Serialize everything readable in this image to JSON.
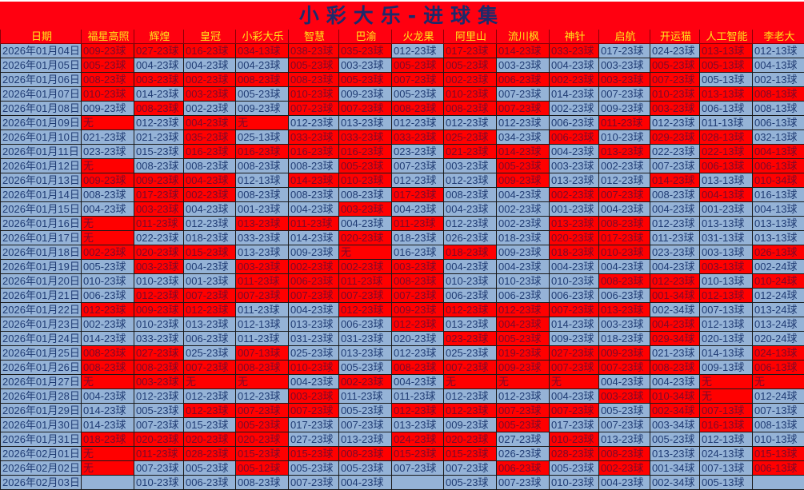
{
  "title": "小彩大乐-进球集",
  "colors": {
    "hit_red": "#ff0000",
    "miss_blue": "#95b3d7",
    "header_bg": "#ff0010",
    "header_text": "#ffe81a",
    "text": "#1f3b73"
  },
  "columns": [
    "日期",
    "福星高照",
    "辉煌",
    "皇冠",
    "小彩大乐",
    "智慧",
    "巴渝",
    "火龙果",
    "阿里山",
    "流川枫",
    "神针",
    "启航",
    "开运猫",
    "人工智能",
    "李老大"
  ],
  "rows": [
    {
      "date": "2026年01月04日",
      "cells": [
        "009-23球",
        "027-23球",
        "016-23球",
        "034-13球",
        "038-23球",
        "035-23球",
        "012-23球",
        "017-23球",
        "014-23球",
        "033-23球",
        "017-23球",
        "024-23球",
        "013-13球",
        "012-13球"
      ],
      "red": [
        1,
        1,
        1,
        1,
        1,
        1,
        0,
        1,
        1,
        1,
        0,
        0,
        1,
        0
      ]
    },
    {
      "date": "2026年01月05日",
      "cells": [
        "005-23球",
        "004-23球",
        "004-23球",
        "004-23球",
        "005-23球",
        "003-23球",
        "005-23球",
        "005-23球",
        "003-23球",
        "004-23球",
        "003-23球",
        "005-23球",
        "005-13球",
        "004-13球"
      ],
      "red": [
        1,
        0,
        0,
        0,
        1,
        0,
        1,
        1,
        0,
        0,
        0,
        1,
        1,
        0
      ]
    },
    {
      "date": "2026年01月06日",
      "cells": [
        "008-23球",
        "003-23球",
        "002-23球",
        "008-23球",
        "008-23球",
        "005-23球",
        "007-23球",
        "002-23球",
        "006-23球",
        "002-23球",
        "003-23球",
        "007-23球",
        "005-13球",
        "002-13球"
      ],
      "red": [
        1,
        1,
        1,
        1,
        1,
        1,
        1,
        1,
        1,
        1,
        1,
        1,
        0,
        0
      ]
    },
    {
      "date": "2026年01月07日",
      "cells": [
        "010-23球",
        "014-23球",
        "003-23球",
        "005-23球",
        "010-23球",
        "009-23球",
        "005-23球",
        "010-23球",
        "007-23球",
        "014-23球",
        "007-23球",
        "010-23球",
        "013-13球",
        "008-13球"
      ],
      "red": [
        1,
        0,
        1,
        0,
        1,
        0,
        0,
        1,
        0,
        0,
        0,
        1,
        1,
        1
      ]
    },
    {
      "date": "2026年01月08日",
      "cells": [
        "009-23球",
        "008-23球",
        "002-23球",
        "009-23球",
        "007-23球",
        "007-23球",
        "008-23球",
        "008-23球",
        "007-23球",
        "002-23球",
        "009-23球",
        "003-23球",
        "006-13球",
        "008-13球"
      ],
      "red": [
        0,
        1,
        0,
        0,
        1,
        1,
        1,
        1,
        1,
        0,
        0,
        1,
        0,
        0
      ]
    },
    {
      "date": "2026年01月09日",
      "cells": [
        "无",
        "012-23球",
        "004-23球",
        "无",
        "012-23球",
        "013-23球",
        "012-23球",
        "012-23球",
        "012-23球",
        "006-23球",
        "011-23球",
        "012-23球",
        "011-13球",
        "006-13球"
      ],
      "red": [
        1,
        0,
        1,
        1,
        0,
        0,
        0,
        0,
        0,
        0,
        1,
        0,
        0,
        0
      ]
    },
    {
      "date": "2026年01月10日",
      "cells": [
        "021-23球",
        "021-23球",
        "035-23球",
        "025-13球",
        "033-23球",
        "033-23球",
        "033-23球",
        "025-23球",
        "034-23球",
        "006-23球",
        "010-23球",
        "029-23球",
        "028-13球",
        "032-13球"
      ],
      "red": [
        0,
        0,
        1,
        0,
        1,
        1,
        1,
        1,
        0,
        1,
        0,
        1,
        1,
        0
      ]
    },
    {
      "date": "2026年01月11日",
      "cells": [
        "023-23球",
        "015-23球",
        "016-23球",
        "016-23球",
        "016-23球",
        "016-23球",
        "023-23球",
        "021-23球",
        "014-23球",
        "004-23球",
        "013-23球",
        "022-23球",
        "022-13球",
        "004-13球"
      ],
      "red": [
        0,
        0,
        1,
        1,
        1,
        1,
        0,
        1,
        1,
        0,
        1,
        0,
        1,
        1
      ]
    },
    {
      "date": "2026年01月12日",
      "cells": [
        "无",
        "008-23球",
        "008-23球",
        "008-23球",
        "008-23球",
        "005-23球",
        "007-23球",
        "003-23球",
        "005-23球",
        "003-23球",
        "002-23球",
        "007-23球",
        "006-13球",
        "006-13球"
      ],
      "red": [
        1,
        0,
        0,
        0,
        0,
        1,
        0,
        0,
        1,
        0,
        0,
        0,
        1,
        1
      ]
    },
    {
      "date": "2026年01月13日",
      "cells": [
        "009-23球",
        "009-23球",
        "004-23球",
        "012-13球",
        "014-23球",
        "010-23球",
        "012-23球",
        "012-23球",
        "009-23球",
        "013-23球",
        "012-23球",
        "014-23球",
        "013-13球",
        "010-34球"
      ],
      "red": [
        1,
        1,
        1,
        0,
        1,
        1,
        0,
        0,
        1,
        0,
        0,
        1,
        0,
        1
      ]
    },
    {
      "date": "2026年01月14日",
      "cells": [
        "008-23球",
        "017-23球",
        "002-23球",
        "008-23球",
        "008-23球",
        "008-23球",
        "017-23球",
        "008-23球",
        "004-23球",
        "002-23球",
        "007-23球",
        "008-23球",
        "004-13球",
        "016-13球"
      ],
      "red": [
        0,
        1,
        1,
        0,
        0,
        0,
        1,
        0,
        0,
        1,
        1,
        0,
        1,
        0
      ]
    },
    {
      "date": "2026年01月15日",
      "cells": [
        "004-23球",
        "003-23球",
        "004-23球",
        "001-23球",
        "004-23球",
        "003-23球",
        "004-23球",
        "004-23球",
        "002-23球",
        "001-23球",
        "004-23球",
        "004-23球",
        "001-23球",
        "004-13球"
      ],
      "red": [
        0,
        1,
        0,
        0,
        0,
        1,
        0,
        0,
        0,
        0,
        0,
        0,
        0,
        0
      ]
    },
    {
      "date": "2026年01月16日",
      "cells": [
        "无",
        "011-23球",
        "012-23球",
        "013-23球",
        "011-23球",
        "004-23球",
        "011-23球",
        "012-23球",
        "002-23球",
        "013-23球",
        "008-23球",
        "012-23球",
        "013-13球",
        "013-13球"
      ],
      "red": [
        1,
        1,
        0,
        1,
        1,
        0,
        1,
        0,
        0,
        1,
        1,
        0,
        0,
        0
      ]
    },
    {
      "date": "2026年01月17日",
      "cells": [
        "无",
        "022-23球",
        "018-23球",
        "033-23球",
        "014-23球",
        "020-23球",
        "018-23球",
        "026-23球",
        "018-23球",
        "020-23球",
        "017-23球",
        "011-23球",
        "031-13球",
        "013-13球"
      ],
      "red": [
        1,
        0,
        0,
        0,
        0,
        1,
        0,
        0,
        0,
        1,
        1,
        0,
        0,
        0
      ]
    },
    {
      "date": "2026年01月18日",
      "cells": [
        "002-23球",
        "020-23球",
        "015-23球",
        "013-23球",
        "009-23球",
        "无",
        "016-23球",
        "018-23球",
        "009-23球",
        "018-23球",
        "010-23球",
        "023-23球",
        "003-13球",
        "026-13球"
      ],
      "red": [
        1,
        1,
        1,
        0,
        0,
        1,
        0,
        1,
        0,
        1,
        1,
        0,
        0,
        1
      ]
    },
    {
      "date": "2026年01月19日",
      "cells": [
        "005-23球",
        "003-23球",
        "004-23球",
        "003-23球",
        "002-23球",
        "002-23球",
        "003-23球",
        "004-23球",
        "004-23球",
        "004-23球",
        "004-23球",
        "004-23球",
        "003-13球",
        "002-24球"
      ],
      "red": [
        0,
        1,
        0,
        1,
        1,
        1,
        1,
        0,
        0,
        0,
        0,
        0,
        1,
        0
      ]
    },
    {
      "date": "2026年01月20日",
      "cells": [
        "010-23球",
        "010-23球",
        "001-23球",
        "011-23球",
        "006-23球",
        "011-23球",
        "008-23球",
        "010-23球",
        "010-23球",
        "010-23球",
        "008-23球",
        "012-23球",
        "010-13球",
        "010-24球"
      ],
      "red": [
        0,
        0,
        0,
        1,
        1,
        1,
        1,
        0,
        0,
        0,
        1,
        1,
        0,
        1
      ]
    },
    {
      "date": "2026年01月21日",
      "cells": [
        "006-23球",
        "012-23球",
        "007-23球",
        "007-23球",
        "007-23球",
        "007-23球",
        "007-23球",
        "006-23球",
        "006-23球",
        "006-23球",
        "006-23球",
        "001-34球",
        "012-13球",
        "012-24球"
      ],
      "red": [
        0,
        1,
        1,
        1,
        1,
        1,
        1,
        0,
        0,
        0,
        0,
        1,
        1,
        0
      ]
    },
    {
      "date": "2026年01月22日",
      "cells": [
        "012-23球",
        "009-23球",
        "012-23球",
        "011-23球",
        "004-23球",
        "012-23球",
        "009-23球",
        "012-23球",
        "012-23球",
        "007-23球",
        "013-23球",
        "002-34球",
        "007-13球",
        "013-24球"
      ],
      "red": [
        1,
        1,
        1,
        0,
        0,
        1,
        1,
        1,
        1,
        1,
        1,
        0,
        0,
        0
      ]
    },
    {
      "date": "2026年01月23日",
      "cells": [
        "002-23球",
        "010-23球",
        "013-23球",
        "012-13球",
        "013-23球",
        "006-23球",
        "012-23球",
        "013-23球",
        "004-23球",
        "014-23球",
        "003-23球",
        "004-23球",
        "012-13球",
        "013-24球"
      ],
      "red": [
        0,
        0,
        0,
        0,
        0,
        0,
        1,
        0,
        1,
        0,
        0,
        1,
        0,
        0
      ]
    },
    {
      "date": "2026年01月24日",
      "cells": [
        "014-23球",
        "033-23球",
        "006-23球",
        "011-23球",
        "031-23球",
        "031-23球",
        "020-23球",
        "023-23球",
        "005-23球",
        "009-23球",
        "018-23球",
        "029-34球",
        "020-13球",
        "020-24球"
      ],
      "red": [
        0,
        0,
        0,
        0,
        0,
        0,
        0,
        1,
        1,
        0,
        0,
        1,
        0,
        0
      ]
    },
    {
      "date": "2026年01月25日",
      "cells": [
        "008-23球",
        "027-23球",
        "025-23球",
        "007-13球",
        "025-23球",
        "013-23球",
        "012-23球",
        "025-23球",
        "019-23球",
        "027-23球",
        "009-23球",
        "021-23球",
        "014-13球",
        "024-13球"
      ],
      "red": [
        1,
        1,
        0,
        1,
        0,
        0,
        0,
        0,
        1,
        1,
        1,
        0,
        0,
        1
      ]
    },
    {
      "date": "2026年01月26日",
      "cells": [
        "008-23球",
        "008-23球",
        "007-23球",
        "008-23球",
        "010-23球",
        "005-23球",
        "008-23球",
        "007-23球",
        "009-23球",
        "007-23球",
        "007-23球",
        "008-23球",
        "009-13球",
        "006-13球"
      ],
      "red": [
        1,
        1,
        1,
        1,
        1,
        0,
        1,
        1,
        1,
        1,
        1,
        1,
        0,
        1
      ]
    },
    {
      "date": "2026年01月27日",
      "cells": [
        "无",
        "003-23球",
        "无",
        "无",
        "004-23球",
        "002-23球",
        "004-23球",
        "无",
        "无",
        "无",
        "004-23球",
        "004-23球",
        "无",
        "无"
      ],
      "red": [
        1,
        1,
        1,
        1,
        0,
        1,
        0,
        1,
        1,
        1,
        0,
        0,
        1,
        1
      ]
    },
    {
      "date": "2026年01月28日",
      "cells": [
        "004-23球",
        "012-23球",
        "012-23球",
        "012-23球",
        "003-23球",
        "011-23球",
        "011-23球",
        "012-23球",
        "012-23球",
        "004-23球",
        "003-23球",
        "010-34球",
        "无",
        "012-24球"
      ],
      "red": [
        0,
        0,
        0,
        0,
        1,
        0,
        0,
        0,
        0,
        0,
        1,
        1,
        1,
        0
      ]
    },
    {
      "date": "2026年01月29日",
      "cells": [
        "014-23球",
        "005-23球",
        "012-23球",
        "007-23球",
        "007-23球",
        "005-23球",
        "012-23球",
        "012-23球",
        "007-23球",
        "007-23球",
        "005-23球",
        "002-34球",
        "007-13球",
        "007-13球"
      ],
      "red": [
        0,
        0,
        1,
        1,
        1,
        0,
        1,
        1,
        1,
        1,
        0,
        1,
        1,
        0
      ]
    },
    {
      "date": "2026年01月30日",
      "cells": [
        "014-23球",
        "007-23球",
        "015-23球",
        "005-23球",
        "017-23球",
        "007-23球",
        "013-23球",
        "009-23球",
        "005-23球",
        "017-23球",
        "007-23球",
        "003-34球",
        "016-13球",
        "008-13球"
      ],
      "red": [
        0,
        0,
        0,
        1,
        0,
        0,
        0,
        0,
        1,
        0,
        0,
        0,
        1,
        0
      ]
    },
    {
      "date": "2026年01月31日",
      "cells": [
        "018-23球",
        "020-23球",
        "020-23球",
        "020-23球",
        "027-23球",
        "013-23球",
        "024-23球",
        "020-23球",
        "027-23球",
        "010-23球",
        "013-23球",
        "005-23球",
        "012-13球",
        "010-13球"
      ],
      "red": [
        1,
        1,
        1,
        1,
        0,
        0,
        1,
        1,
        0,
        1,
        0,
        0,
        0,
        0
      ]
    },
    {
      "date": "2026年02月01日",
      "cells": [
        "无",
        "011-23球",
        "028-23球",
        "015-23球",
        "015-23球",
        "008-23球",
        "015-23球",
        "015-23球",
        "026-23球",
        "028-23球",
        "008-23球",
        "013-23球",
        "024-13球",
        "015-13球"
      ],
      "red": [
        1,
        1,
        1,
        1,
        1,
        1,
        1,
        1,
        0,
        1,
        1,
        0,
        0,
        1
      ]
    },
    {
      "date": "2026年02月02日",
      "cells": [
        "无",
        "007-23球",
        "005-23球",
        "005-12球",
        "005-23球",
        "005-23球",
        "007-23球",
        "007-23球",
        "006-23球",
        "005-23球",
        "002-23球",
        "001-34球",
        "007-13球",
        "006-13球"
      ],
      "red": [
        1,
        0,
        0,
        1,
        0,
        0,
        0,
        0,
        1,
        0,
        1,
        0,
        0,
        1
      ]
    },
    {
      "date": "2026年02月03日",
      "cells": [
        "",
        "010-23球",
        "006-23球",
        "008-23球",
        "007-23球",
        "004-23球",
        "",
        "005-23球",
        "007-23球",
        "010-23球",
        "004-23球",
        "002-34球",
        "005-13球",
        ""
      ],
      "red": [
        0,
        0,
        0,
        0,
        0,
        0,
        0,
        0,
        0,
        0,
        0,
        0,
        0,
        0
      ]
    }
  ]
}
